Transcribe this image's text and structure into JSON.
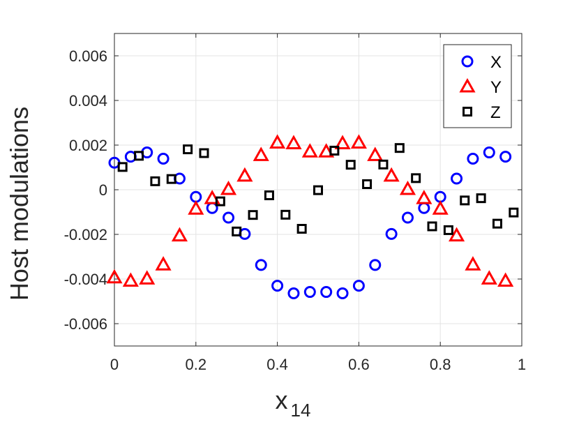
{
  "chart_data": {
    "type": "scatter",
    "title": "",
    "xlabel": "x",
    "xlabel_subscript": "14",
    "ylabel": "Host modulations",
    "xlim": [
      0,
      1
    ],
    "ylim": [
      -0.007,
      0.007
    ],
    "x_ticks": [
      0,
      0.2,
      0.4,
      0.6,
      0.8,
      1
    ],
    "x_tick_labels": [
      "0",
      "0.2",
      "0.4",
      "0.6",
      "0.8",
      "1"
    ],
    "y_ticks": [
      -0.006,
      -0.004,
      -0.002,
      0,
      0.002,
      0.004,
      0.006
    ],
    "y_tick_labels": [
      "-0.006",
      "-0.004",
      "-0.002",
      "0",
      "0.002",
      "0.004",
      "0.006"
    ],
    "grid": true,
    "legend": "top-right",
    "series": [
      {
        "name": "X",
        "marker": "circle",
        "color": "#0000ff",
        "x": [
          0.0,
          0.04,
          0.08,
          0.12,
          0.16,
          0.2,
          0.24,
          0.28,
          0.32,
          0.36,
          0.4,
          0.44,
          0.48,
          0.52,
          0.56,
          0.6,
          0.64,
          0.68,
          0.72,
          0.76,
          0.8,
          0.84,
          0.88,
          0.92,
          0.96
        ],
        "y": [
          0.00121,
          0.00148,
          0.00167,
          0.00139,
          0.0005,
          -0.00032,
          -0.00082,
          -0.00125,
          -0.00198,
          -0.00337,
          -0.0043,
          -0.00464,
          -0.00458,
          -0.00458,
          -0.00464,
          -0.0043,
          -0.00337,
          -0.00198,
          -0.00125,
          -0.00082,
          -0.00032,
          0.0005,
          0.00139,
          0.00167,
          0.00148
        ]
      },
      {
        "name": "Y",
        "marker": "triangle",
        "color": "#ff0000",
        "x": [
          0.0,
          0.04,
          0.08,
          0.12,
          0.16,
          0.2,
          0.24,
          0.28,
          0.32,
          0.36,
          0.4,
          0.44,
          0.48,
          0.52,
          0.56,
          0.6,
          0.64,
          0.68,
          0.72,
          0.76,
          0.8,
          0.84,
          0.88,
          0.92,
          0.96
        ],
        "y": [
          -0.00393,
          -0.00408,
          -0.00398,
          -0.00335,
          -0.00205,
          -0.00085,
          -0.00038,
          3e-05,
          0.00063,
          0.00155,
          0.00211,
          0.00208,
          0.00171,
          0.00171,
          0.00208,
          0.00211,
          0.00155,
          0.00063,
          3e-05,
          -0.00038,
          -0.00085,
          -0.00205,
          -0.00335,
          -0.00398,
          -0.00408
        ]
      },
      {
        "name": "Z",
        "marker": "square",
        "color": "#000000",
        "x": [
          0.02,
          0.06,
          0.1,
          0.14,
          0.18,
          0.22,
          0.26,
          0.3,
          0.34,
          0.38,
          0.42,
          0.46,
          0.5,
          0.54,
          0.58,
          0.62,
          0.66,
          0.7,
          0.74,
          0.78,
          0.82,
          0.86,
          0.9,
          0.94,
          0.98
        ],
        "y": [
          0.00102,
          0.00152,
          0.00038,
          0.00048,
          0.00181,
          0.00164,
          -0.00052,
          -0.00187,
          -0.00113,
          -0.00025,
          -0.00112,
          -0.00175,
          -2e-05,
          0.00175,
          0.00112,
          0.00025,
          0.00113,
          0.00187,
          0.00052,
          -0.00164,
          -0.00181,
          -0.00048,
          -0.00038,
          -0.00152,
          -0.00102
        ]
      }
    ]
  }
}
